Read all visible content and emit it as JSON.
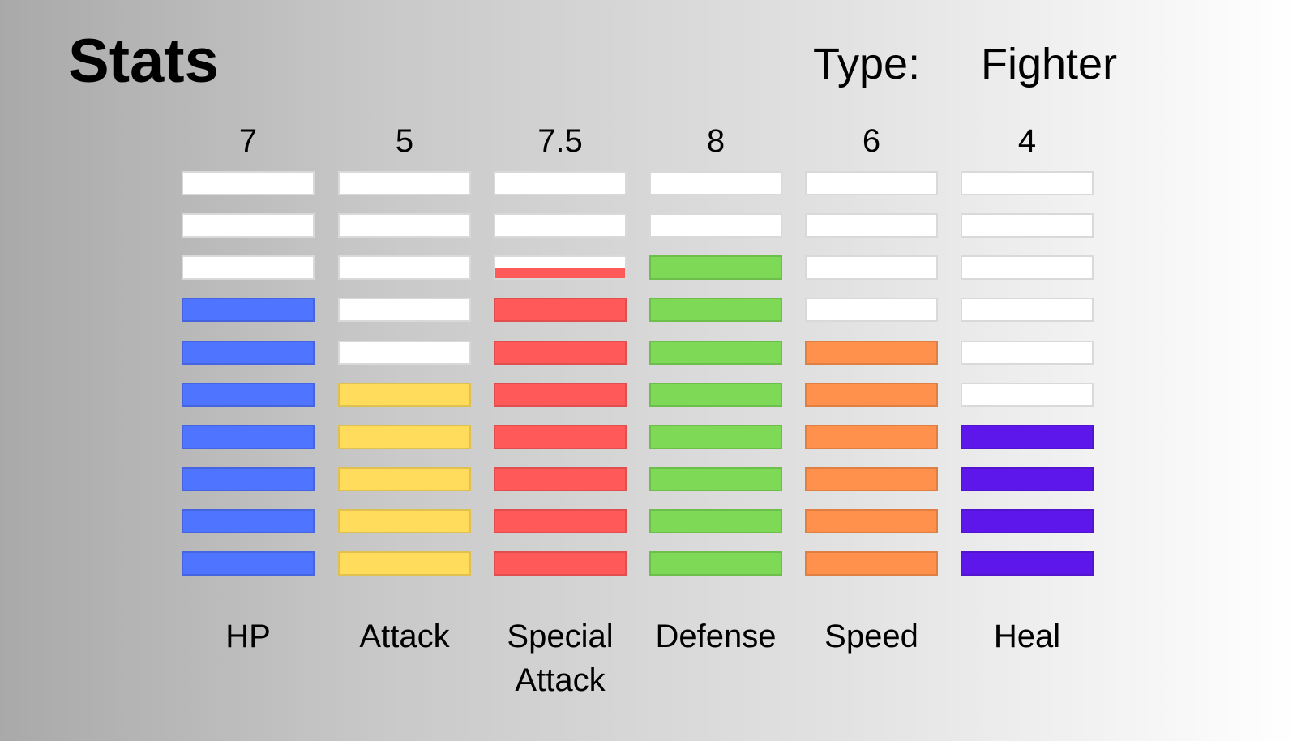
{
  "header": {
    "title": "Stats",
    "type_label": "Type:",
    "type_value": "Fighter"
  },
  "chart_data": {
    "type": "bar",
    "segments": 10,
    "ylim": [
      0,
      10
    ],
    "categories": [
      "HP",
      "Attack",
      "Special\nAttack",
      "Defense",
      "Speed",
      "Heal"
    ],
    "values": [
      7,
      5,
      7.5,
      8,
      6,
      4
    ],
    "value_labels": [
      "7",
      "5",
      "7.5",
      "8",
      "6",
      "4"
    ],
    "colors": [
      "#4f74ff",
      "#ffdc5c",
      "#ff5959",
      "#7ed957",
      "#ff914d",
      "#5e17eb"
    ],
    "empty_color": "#ffffff"
  }
}
